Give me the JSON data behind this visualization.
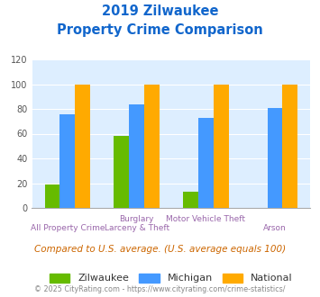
{
  "title_line1": "2019 Zilwaukee",
  "title_line2": "Property Crime Comparison",
  "cat_labels_top": [
    "",
    "Burglary",
    "Motor Vehicle Theft",
    ""
  ],
  "cat_labels_bot": [
    "All Property Crime",
    "Larceny & Theft",
    "",
    "Arson"
  ],
  "zilwaukee": [
    19,
    58,
    13,
    0
  ],
  "michigan": [
    76,
    84,
    73,
    81
  ],
  "national": [
    100,
    100,
    100,
    100
  ],
  "colors": {
    "zilwaukee": "#66bb00",
    "michigan": "#4499ff",
    "national": "#ffaa00"
  },
  "ylim": [
    0,
    120
  ],
  "yticks": [
    0,
    20,
    40,
    60,
    80,
    100,
    120
  ],
  "bg_color": "#ddeeff",
  "title_color": "#1166cc",
  "footnote": "Compared to U.S. average. (U.S. average equals 100)",
  "copyright": "© 2025 CityRating.com - https://www.cityrating.com/crime-statistics/",
  "footnote_color": "#cc6600",
  "copyright_color": "#888888",
  "legend_labels": [
    "Zilwaukee",
    "Michigan",
    "National"
  ],
  "label_color": "#9966aa"
}
